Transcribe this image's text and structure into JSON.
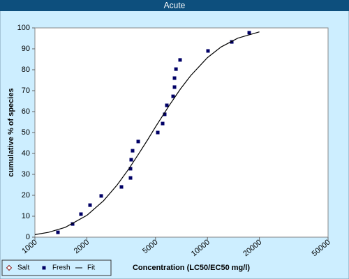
{
  "chart_data": {
    "type": "scatter",
    "title": "Acute",
    "xlabel": "Concentration (LC50/EC50 mg/l)",
    "ylabel": "cumulative % of species",
    "xscale": "log",
    "xlim": [
      1000,
      50000
    ],
    "xticks": [
      1000,
      2000,
      5000,
      10000,
      20000,
      50000
    ],
    "ylim": [
      0,
      100
    ],
    "yticks": [
      0,
      10,
      20,
      30,
      40,
      50,
      60,
      70,
      80,
      90,
      100
    ],
    "legend": "bottom-left",
    "series": [
      {
        "name": "Salt",
        "kind": "points",
        "marker": "diamond",
        "color": "#8b1a1a",
        "x": [],
        "values": []
      },
      {
        "name": "Fresh",
        "kind": "points",
        "marker": "square",
        "color": "#000066",
        "x": [
          1360,
          1654,
          1849,
          2087,
          2423,
          3174,
          3582,
          3582,
          3615,
          3683,
          3970,
          5153,
          5500,
          5654,
          5815,
          6324,
          6444,
          6444,
          6571,
          6940,
          10074,
          13830,
          17460
        ],
        "values": [
          2.3,
          6.3,
          11,
          15.3,
          19.7,
          24,
          28.3,
          32.7,
          37,
          41.3,
          45.7,
          50,
          54.3,
          58.7,
          63,
          67.3,
          71.7,
          76,
          80.3,
          84.7,
          89,
          93.3,
          97.7
        ]
      },
      {
        "name": "Fit",
        "kind": "line",
        "color": "#000000",
        "x": [
          1000,
          1200,
          1500,
          2000,
          2500,
          3000,
          3500,
          4000,
          4500,
          5000,
          6000,
          7000,
          8000,
          10000,
          12000,
          15000,
          20000
        ],
        "values": [
          1.2,
          2.3,
          4.7,
          10.4,
          17.4,
          25.0,
          32.6,
          39.9,
          46.5,
          52.7,
          62.9,
          71.0,
          77.2,
          85.8,
          90.9,
          95.1,
          98.1
        ]
      }
    ]
  }
}
